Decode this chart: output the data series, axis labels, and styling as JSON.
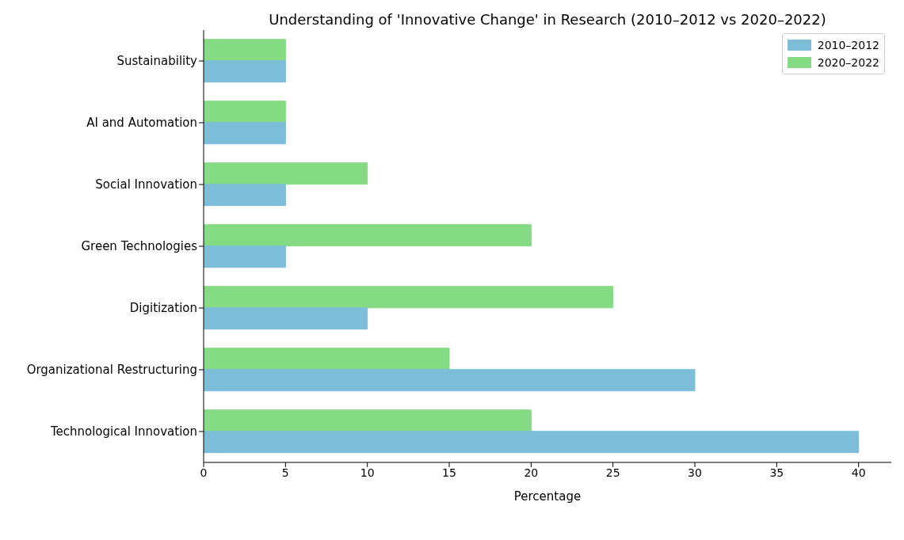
{
  "chart_data": {
    "type": "bar",
    "orientation": "horizontal",
    "title": "Understanding of 'Innovative Change' in Research (2010–2012 vs 2020–2022)",
    "xlabel": "Percentage",
    "categories": [
      "Sustainability",
      "AI and Automation",
      "Social Innovation",
      "Green Technologies",
      "Digitization",
      "Organizational Restructuring",
      "Technological Innovation"
    ],
    "series": [
      {
        "name": "2010–2012",
        "color": "#87ceeb",
        "values": [
          5,
          5,
          5,
          5,
          10,
          30,
          40
        ]
      },
      {
        "name": "2020–2022",
        "color": "#90ee90",
        "values": [
          5,
          5,
          10,
          20,
          25,
          15,
          20
        ]
      }
    ],
    "xlim": [
      0,
      42
    ],
    "xticks": [
      0,
      5,
      10,
      15,
      20,
      25,
      30,
      35,
      40
    ],
    "grid": false,
    "legend": "top right"
  }
}
